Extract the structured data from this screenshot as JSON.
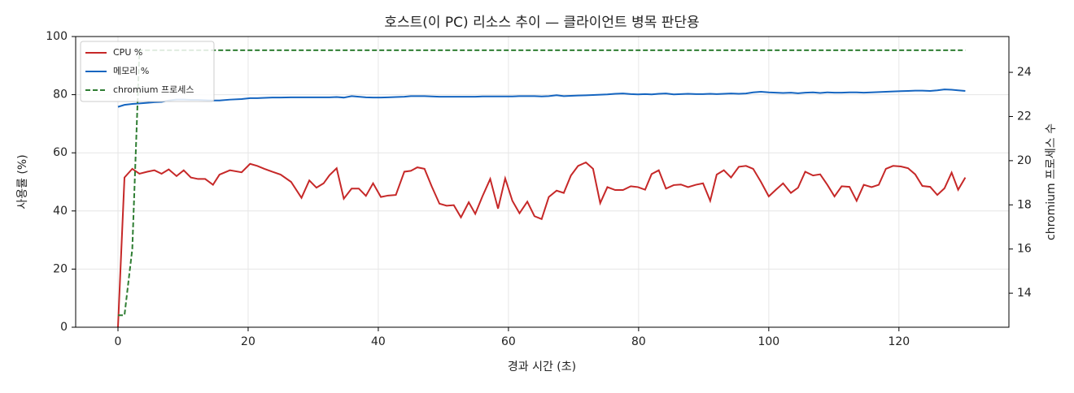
{
  "chart_data": {
    "type": "line",
    "title": "호스트(이 PC) 리소스 추이 — 클라이언트 병목 판단용",
    "x_label": "경과 시간 (초)",
    "y_label": "사용률 (%)",
    "y2_label": "chromium 프로세스 수",
    "x": [
      0,
      1,
      2.2,
      3.3,
      4.5,
      5.6,
      6.7,
      7.8,
      9,
      10.1,
      11.2,
      12.3,
      13.4,
      14.6,
      15.6,
      17.2,
      19,
      20.3,
      21.4,
      22.5,
      23.7,
      25,
      26.6,
      28.2,
      29.4,
      30.5,
      31.6,
      32.5,
      33.6,
      34.7,
      35.9,
      37,
      38.1,
      39.2,
      40.4,
      41.5,
      42.7,
      44,
      45,
      46,
      47.1,
      48.2,
      49.4,
      50.5,
      51.6,
      52.7,
      53.9,
      54.9,
      56,
      57.2,
      58.4,
      59.5,
      60.6,
      61.7,
      62.9,
      64,
      65.1,
      66.2,
      67.4,
      68.5,
      69.6,
      70.7,
      71.9,
      73,
      74.1,
      75.2,
      76.4,
      77.6,
      78.8,
      79.9,
      81,
      82,
      83.1,
      84.2,
      85.4,
      86.5,
      87.6,
      88.8,
      89.9,
      91,
      92,
      93.1,
      94.2,
      95.4,
      96.5,
      97.6,
      98.8,
      100,
      101.1,
      102.2,
      103.4,
      104.5,
      105.6,
      106.8,
      107.9,
      109,
      110.1,
      111.2,
      112.4,
      113.5,
      114.6,
      115.8,
      116.9,
      118,
      119.1,
      120.3,
      121.4,
      122.5,
      123.6,
      124.8,
      125.9,
      127,
      128.1,
      129.1,
      130.2
    ],
    "series": [
      {
        "name": "CPU %",
        "color": "#c62828",
        "values": [
          0,
          51.5,
          54.5,
          52.8,
          53.5,
          54,
          52.8,
          54.3,
          52,
          54,
          51.5,
          51,
          51,
          49,
          52.5,
          54,
          53.3,
          56.2,
          55.5,
          54.5,
          53.5,
          52.5,
          50,
          44.5,
          50.5,
          48,
          49.5,
          52.3,
          54.7,
          44.2,
          47.7,
          47.7,
          45.2,
          49.5,
          44.8,
          45.3,
          45.5,
          53.5,
          53.8,
          55,
          54.5,
          48.5,
          42.5,
          41.8,
          42,
          37.8,
          43,
          39,
          45,
          51,
          40.8,
          51.2,
          43.5,
          39.2,
          43.2,
          38.2,
          37.2,
          44.8,
          47,
          46.2,
          52.2,
          55.5,
          56.7,
          54.5,
          42.7,
          48.2,
          47.2,
          47.2,
          48.5,
          48.2,
          47.3,
          52.7,
          54,
          47.7,
          48.9,
          49.1,
          48.2,
          49,
          49.5,
          43.5,
          52.5,
          54,
          51.5,
          55.2,
          55.5,
          54.5,
          50,
          45,
          47.3,
          49.5,
          46.2,
          48,
          53.5,
          52.2,
          52.6,
          49,
          45,
          48.5,
          48.3,
          43.5,
          49,
          48.2,
          49,
          54.5,
          55.5,
          55.3,
          54.7,
          52.6,
          48.6,
          48.3,
          45.5,
          47.8,
          53.2,
          47.3,
          51.5
        ]
      },
      {
        "name": "메모리 %",
        "color": "#1565c0",
        "values": [
          75.8,
          76.5,
          76.8,
          77,
          77.2,
          77.4,
          77.5,
          78,
          78.3,
          78.3,
          78.2,
          78.2,
          78.1,
          78,
          78,
          78.3,
          78.5,
          78.8,
          78.8,
          78.9,
          79,
          79,
          79.1,
          79.1,
          79.1,
          79.1,
          79.1,
          79.1,
          79.2,
          79,
          79.5,
          79.3,
          79.1,
          79,
          79,
          79.1,
          79.2,
          79.3,
          79.5,
          79.5,
          79.5,
          79.4,
          79.3,
          79.3,
          79.3,
          79.3,
          79.3,
          79.3,
          79.4,
          79.4,
          79.4,
          79.4,
          79.4,
          79.5,
          79.5,
          79.5,
          79.4,
          79.5,
          79.8,
          79.5,
          79.6,
          79.7,
          79.8,
          79.9,
          80,
          80.1,
          80.3,
          80.4,
          80.2,
          80.1,
          80.2,
          80.1,
          80.3,
          80.4,
          80.1,
          80.2,
          80.3,
          80.2,
          80.2,
          80.3,
          80.2,
          80.3,
          80.4,
          80.3,
          80.4,
          80.8,
          81,
          80.8,
          80.7,
          80.6,
          80.7,
          80.5,
          80.7,
          80.8,
          80.6,
          80.8,
          80.7,
          80.7,
          80.8,
          80.8,
          80.7,
          80.8,
          80.9,
          81,
          81.1,
          81.2,
          81.3,
          81.4,
          81.4,
          81.3,
          81.5,
          81.8,
          81.7,
          81.5,
          81.3
        ]
      },
      {
        "name": "chromium 프로세스",
        "color": "#2e7d32",
        "axis": "y2",
        "linestyle": "dashed",
        "values": [
          13,
          13,
          16,
          25,
          25,
          25,
          25,
          25,
          25,
          25,
          25,
          25,
          25,
          25,
          25,
          25,
          25,
          25,
          25,
          25,
          25,
          25,
          25,
          25,
          25,
          25,
          25,
          25,
          25,
          25,
          25,
          25,
          25,
          25,
          25,
          25,
          25,
          25,
          25,
          25,
          25,
          25,
          25,
          25,
          25,
          25,
          25,
          25,
          25,
          25,
          25,
          25,
          25,
          25,
          25,
          25,
          25,
          25,
          25,
          25,
          25,
          25,
          25,
          25,
          25,
          25,
          25,
          25,
          25,
          25,
          25,
          25,
          25,
          25,
          25,
          25,
          25,
          25,
          25,
          25,
          25,
          25,
          25,
          25,
          25,
          25,
          25,
          25,
          25,
          25,
          25,
          25,
          25,
          25,
          25,
          25,
          25,
          25,
          25,
          25,
          25,
          25,
          25,
          25,
          25,
          25,
          25,
          25,
          25,
          25,
          25,
          25,
          25,
          25,
          25
        ]
      }
    ],
    "xlim": [
      -6.5,
      136.9
    ],
    "xticks": [
      0,
      20,
      40,
      60,
      80,
      100,
      120
    ],
    "ylim": [
      0,
      100
    ],
    "yticks": [
      0,
      20,
      40,
      60,
      80,
      100
    ],
    "y2lim": [
      12.46,
      25.62
    ],
    "y2ticks": [
      14,
      16,
      18,
      20,
      22,
      24
    ],
    "grid": true,
    "legend": "upper-left"
  }
}
